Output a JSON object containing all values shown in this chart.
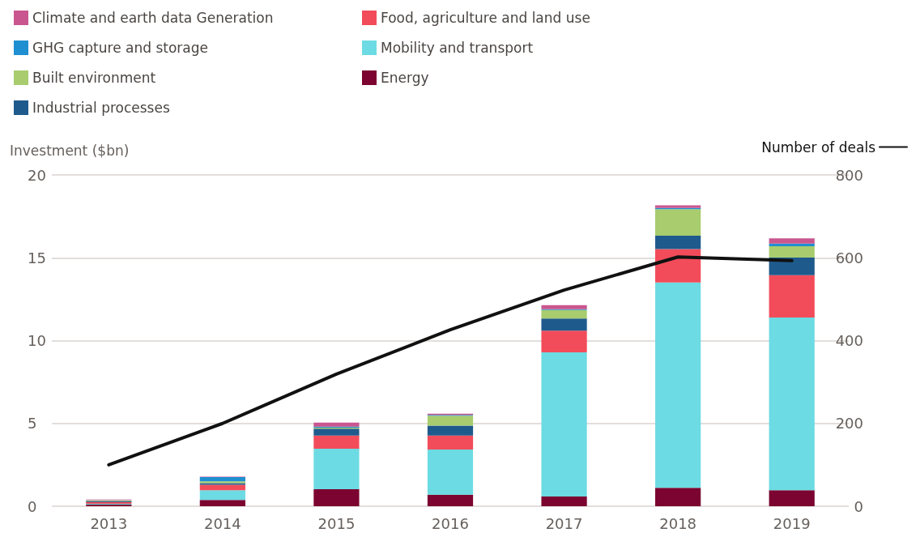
{
  "chart_data": {
    "type": "bar",
    "stacked": true,
    "ylabel": "Investment ($bn)",
    "categories": [
      "2013",
      "2014",
      "2015",
      "2016",
      "2017",
      "2018",
      "2019"
    ],
    "series": [
      {
        "name": "Energy",
        "color": "#7b0430",
        "values": [
          0.1,
          0.38,
          1.03,
          0.7,
          0.59,
          1.11,
          0.96
        ]
      },
      {
        "name": "Mobility and transport",
        "color": "#6ddbe3",
        "values": [
          0.05,
          0.58,
          2.44,
          2.72,
          8.7,
          12.4,
          10.43
        ]
      },
      {
        "name": "Food, agriculture and land use",
        "color": "#f24c5a",
        "values": [
          0.1,
          0.33,
          0.8,
          0.85,
          1.31,
          2.02,
          2.56
        ]
      },
      {
        "name": "Industrial processes",
        "color": "#1f5a8c",
        "values": [
          0.05,
          0.1,
          0.41,
          0.59,
          0.73,
          0.8,
          1.06
        ]
      },
      {
        "name": "Built environment",
        "color": "#a8cc6e",
        "values": [
          0.05,
          0.11,
          0.06,
          0.6,
          0.52,
          1.6,
          0.69
        ]
      },
      {
        "name": "GHG capture and storage",
        "color": "#1e8fd0",
        "values": [
          0.02,
          0.26,
          0.07,
          0.05,
          0.05,
          0.08,
          0.16
        ]
      },
      {
        "name": "Climate and earth data Generation",
        "color": "#c9568f",
        "values": [
          0.03,
          0.03,
          0.24,
          0.08,
          0.24,
          0.16,
          0.31
        ]
      },
      {
        "name": "Number of deals",
        "type": "line",
        "axis": "y2",
        "color": "#111111",
        "values": [
          100,
          200,
          319,
          426,
          522,
          602,
          593
        ]
      }
    ],
    "ylim": [
      0,
      20
    ],
    "yticks": [
      0,
      5,
      10,
      15,
      20
    ],
    "y2lim": [
      0,
      800
    ],
    "y2ticks": [
      0,
      200,
      400,
      600,
      800
    ],
    "grid": "y",
    "legend": "top",
    "marker": "none",
    "line_style": "solid"
  }
}
